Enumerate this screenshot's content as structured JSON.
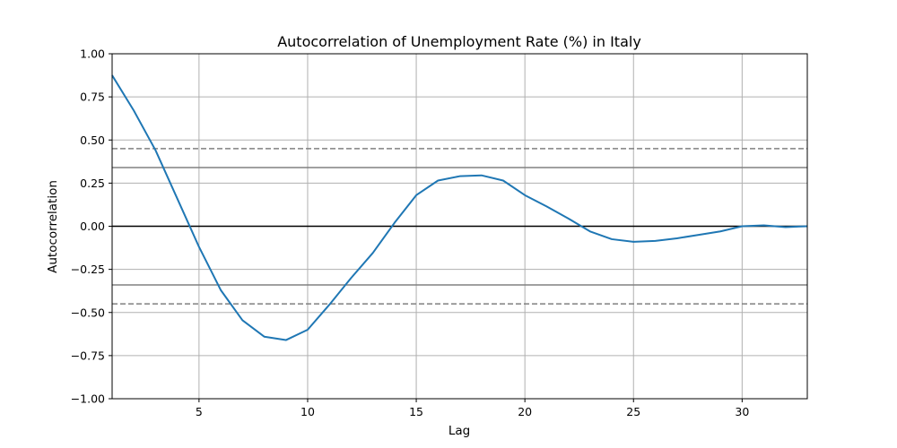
{
  "chart_data": {
    "type": "line",
    "title": "Autocorrelation of Unemployment Rate (%) in Italy",
    "xlabel": "Lag",
    "ylabel": "Autocorrelation",
    "xlim": [
      1,
      33
    ],
    "ylim": [
      -1.0,
      1.0
    ],
    "grid": true,
    "x_ticks": [
      5,
      10,
      15,
      20,
      25,
      30
    ],
    "x_tick_labels": [
      "5",
      "10",
      "15",
      "20",
      "25",
      "30"
    ],
    "y_ticks": [
      -1.0,
      -0.75,
      -0.5,
      -0.25,
      0.0,
      0.25,
      0.5,
      0.75,
      1.0
    ],
    "y_tick_labels": [
      "−1.00",
      "−0.75",
      "−0.50",
      "−0.25",
      "0.00",
      "0.25",
      "0.50",
      "0.75",
      "1.00"
    ],
    "reference_lines": [
      {
        "y": 0.0,
        "style": "solid",
        "color": "#000000"
      },
      {
        "y": 0.34,
        "style": "solid",
        "color": "#808080"
      },
      {
        "y": -0.34,
        "style": "solid",
        "color": "#808080"
      },
      {
        "y": 0.45,
        "style": "dashed",
        "color": "#808080"
      },
      {
        "y": -0.45,
        "style": "dashed",
        "color": "#808080"
      }
    ],
    "series": [
      {
        "color": "#1f77b4",
        "x": [
          1,
          2,
          3,
          4,
          5,
          6,
          7,
          8,
          9,
          10,
          11,
          12,
          13,
          14,
          15,
          16,
          17,
          18,
          19,
          20,
          21,
          22,
          23,
          24,
          25,
          26,
          27,
          28,
          29,
          30,
          31,
          32,
          33
        ],
        "values": [
          0.875,
          0.67,
          0.44,
          0.16,
          -0.12,
          -0.37,
          -0.545,
          -0.64,
          -0.66,
          -0.6,
          -0.455,
          -0.3,
          -0.155,
          0.02,
          0.18,
          0.265,
          0.29,
          0.295,
          0.265,
          0.18,
          0.115,
          0.045,
          -0.03,
          -0.075,
          -0.09,
          -0.085,
          -0.07,
          -0.05,
          -0.03,
          0.0,
          0.005,
          -0.005,
          0.0
        ]
      }
    ]
  }
}
